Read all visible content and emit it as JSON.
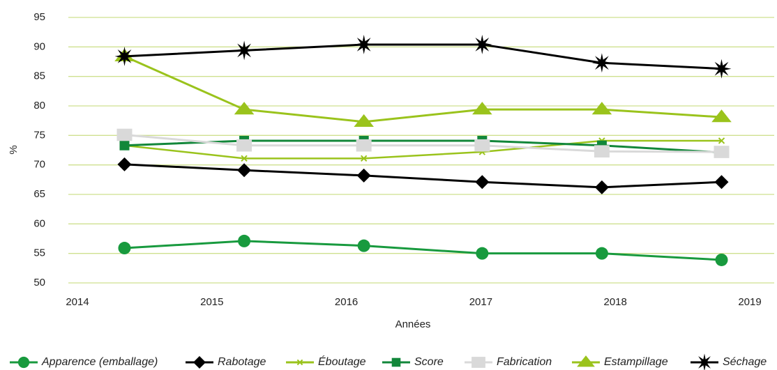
{
  "chart_data": {
    "type": "line",
    "x": [
      2014.35,
      2015.24,
      2016.13,
      2017.01,
      2017.9,
      2018.79
    ],
    "xlabel": "Années",
    "ylabel": "%",
    "xlim": [
      2014,
      2019
    ],
    "xticks": [
      2014,
      2015,
      2016,
      2017,
      2018,
      2019
    ],
    "ylim": [
      50,
      95
    ],
    "yticks": [
      50,
      55,
      60,
      65,
      70,
      75,
      80,
      85,
      90,
      95
    ],
    "grid": true,
    "legend": "bottom",
    "series": [
      {
        "name": "Apparence (emballage)",
        "color": "#189a3e",
        "marker": "circle",
        "values": [
          55.9,
          57.1,
          56.3,
          55.0,
          55.0,
          53.9
        ]
      },
      {
        "name": "Rabotage",
        "color": "#000000",
        "marker": "diamond",
        "values": [
          70.1,
          69.1,
          68.2,
          67.1,
          66.2,
          67.1
        ]
      },
      {
        "name": "Éboutage",
        "color": "#9ac31c",
        "marker": "cross",
        "values": [
          73.3,
          71.1,
          71.1,
          72.2,
          74.1,
          74.1
        ]
      },
      {
        "name": "Score",
        "color": "#12873a",
        "marker": "square",
        "values": [
          73.3,
          74.1,
          74.1,
          74.1,
          73.3,
          72.1
        ]
      },
      {
        "name": "Fabrication",
        "color": "#d9d9d9",
        "marker": "bigsquare",
        "values": [
          75.1,
          73.3,
          73.3,
          73.3,
          72.3,
          72.2
        ]
      },
      {
        "name": "Estampillage",
        "color": "#9ac31c",
        "marker": "triangle",
        "values": [
          88.4,
          79.4,
          77.3,
          79.4,
          79.4,
          78.1
        ]
      },
      {
        "name": "Séchage",
        "color": "#000000",
        "marker": "star",
        "values": [
          88.4,
          89.4,
          90.4,
          90.4,
          87.3,
          86.3
        ]
      }
    ]
  }
}
